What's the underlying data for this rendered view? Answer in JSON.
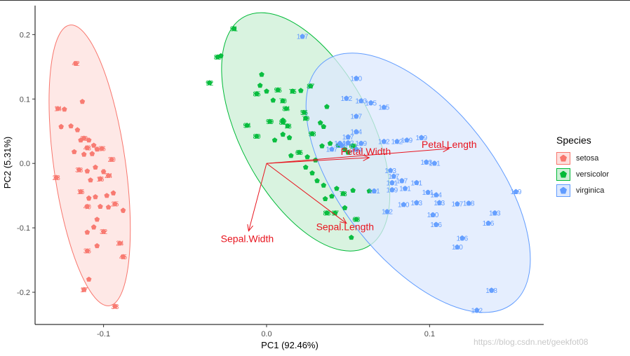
{
  "chart_data": {
    "type": "scatter",
    "title": "",
    "xlabel": "PC1 (92.46%)",
    "ylabel": "PC2 (5.31%)",
    "xlim": [
      -0.142,
      0.17
    ],
    "ylim": [
      -0.25,
      0.245
    ],
    "x_ticks": [
      -0.1,
      0.0,
      0.1
    ],
    "x_tick_labels": [
      "-0.1",
      "0.0",
      "0.1"
    ],
    "y_ticks": [
      -0.2,
      -0.1,
      0.0,
      0.1,
      0.2
    ],
    "y_tick_labels": [
      "-0.2",
      "-0.1",
      "0.0",
      "0.1",
      "0.2"
    ],
    "grid": false,
    "legend": {
      "title": "Species",
      "placement": "right"
    },
    "series": [
      {
        "name": "setosa",
        "color": "#F8766D",
        "fill": "#FDE0DE",
        "ellipse": {
          "cx": -0.1085,
          "cy": -0.003,
          "rx": 0.022,
          "ry": 0.22,
          "angle": -8
        },
        "points": [
          [
            -0.117,
            0.155,
            "42"
          ],
          [
            -0.113,
            0.096,
            ""
          ],
          [
            -0.128,
            0.085,
            "14"
          ],
          [
            -0.124,
            0.084,
            ""
          ],
          [
            -0.126,
            0.057,
            "9"
          ],
          [
            -0.12,
            0.058,
            ""
          ],
          [
            -0.116,
            0.052,
            ""
          ],
          [
            -0.112,
            0.039,
            "39"
          ],
          [
            -0.109,
            0.036,
            ""
          ],
          [
            -0.106,
            0.028,
            ""
          ],
          [
            -0.114,
            0.036,
            ""
          ],
          [
            -0.11,
            0.024,
            "43"
          ],
          [
            -0.104,
            0.022,
            ""
          ],
          [
            -0.101,
            0.023,
            "26"
          ],
          [
            -0.107,
            0.015,
            ""
          ],
          [
            -0.112,
            0.014,
            ""
          ],
          [
            -0.118,
            0.018,
            ""
          ],
          [
            -0.095,
            0.006,
            "20"
          ],
          [
            -0.115,
            -0.01,
            "38"
          ],
          [
            -0.11,
            -0.012,
            ""
          ],
          [
            -0.105,
            -0.006,
            ""
          ],
          [
            -0.1,
            -0.013,
            "7"
          ],
          [
            -0.129,
            -0.022,
            "23"
          ],
          [
            -0.097,
            -0.019,
            "24"
          ],
          [
            -0.108,
            -0.026,
            ""
          ],
          [
            -0.102,
            -0.024,
            "16"
          ],
          [
            -0.114,
            -0.044,
            "16"
          ],
          [
            -0.109,
            -0.054,
            "3"
          ],
          [
            -0.105,
            -0.052,
            ""
          ],
          [
            -0.098,
            -0.05,
            ""
          ],
          [
            -0.094,
            -0.046,
            "4"
          ],
          [
            -0.11,
            -0.067,
            "40"
          ],
          [
            -0.102,
            -0.067,
            ""
          ],
          [
            -0.097,
            -0.068,
            ""
          ],
          [
            -0.093,
            -0.063,
            "25"
          ],
          [
            -0.088,
            -0.073,
            "6"
          ],
          [
            -0.104,
            -0.087,
            ""
          ],
          [
            -0.106,
            -0.099,
            "2"
          ],
          [
            -0.1,
            -0.106,
            "32"
          ],
          [
            -0.11,
            -0.107,
            ""
          ],
          [
            -0.104,
            -0.128,
            ""
          ],
          [
            -0.09,
            -0.124,
            "24"
          ],
          [
            -0.11,
            -0.136,
            "36"
          ],
          [
            -0.088,
            -0.145,
            "45"
          ],
          [
            -0.109,
            -0.18,
            ""
          ],
          [
            -0.112,
            -0.196,
            "17"
          ],
          [
            -0.093,
            -0.222,
            "33"
          ]
        ]
      },
      {
        "name": "versicolor",
        "color": "#00BA38",
        "fill": "#CCEFD6",
        "ellipse": {
          "cx": 0.024,
          "cy": 0.049,
          "rx": 0.04,
          "ry": 0.2025,
          "angle": -28
        },
        "points": [
          [
            -0.02,
            0.209,
            "91"
          ],
          [
            -0.028,
            0.167,
            ""
          ],
          [
            -0.03,
            0.165,
            "85"
          ],
          [
            -0.035,
            0.125,
            "92"
          ],
          [
            -0.003,
            0.138,
            ""
          ],
          [
            -0.004,
            0.121,
            ""
          ],
          [
            0.0,
            0.112,
            ""
          ],
          [
            0.007,
            0.114,
            "96"
          ],
          [
            0.016,
            0.112,
            "75"
          ],
          [
            -0.006,
            0.108,
            "85"
          ],
          [
            0.01,
            0.097,
            "70"
          ],
          [
            0.004,
            0.098,
            ""
          ],
          [
            0.021,
            0.113,
            ""
          ],
          [
            0.027,
            0.12,
            "87"
          ],
          [
            0.037,
            0.088,
            ""
          ],
          [
            0.023,
            0.079,
            "56"
          ],
          [
            0.012,
            0.085,
            "84"
          ],
          [
            0.01,
            0.067,
            ""
          ],
          [
            0.002,
            0.065,
            "99"
          ],
          [
            0.01,
            0.064,
            "82"
          ],
          [
            0.013,
            0.058,
            "78"
          ],
          [
            0.024,
            0.07,
            "79"
          ],
          [
            0.033,
            0.063,
            ""
          ],
          [
            0.028,
            0.046,
            "98"
          ],
          [
            0.035,
            0.057,
            ""
          ],
          [
            -0.012,
            0.059,
            "94"
          ],
          [
            -0.006,
            0.042,
            "80"
          ],
          [
            0.005,
            0.036,
            ""
          ],
          [
            0.01,
            0.045,
            ""
          ],
          [
            0.014,
            0.04,
            ""
          ],
          [
            0.034,
            0.027,
            ""
          ],
          [
            0.039,
            0.031,
            ""
          ],
          [
            0.044,
            0.028,
            ""
          ],
          [
            0.048,
            0.022,
            ""
          ],
          [
            0.053,
            0.027,
            "69"
          ],
          [
            0.05,
            0.017,
            ""
          ],
          [
            0.015,
            0.012,
            ""
          ],
          [
            0.02,
            0.017,
            "66"
          ],
          [
            0.025,
            0.01,
            ""
          ],
          [
            0.03,
            0.005,
            ""
          ],
          [
            0.024,
            -0.006,
            ""
          ],
          [
            0.028,
            -0.015,
            ""
          ],
          [
            0.031,
            -0.027,
            ""
          ],
          [
            0.035,
            -0.034,
            ""
          ],
          [
            0.043,
            -0.039,
            ""
          ],
          [
            0.047,
            -0.047,
            "73"
          ],
          [
            0.04,
            -0.051,
            ""
          ],
          [
            0.036,
            -0.055,
            ""
          ],
          [
            0.048,
            -0.069,
            ""
          ],
          [
            0.055,
            -0.087,
            "63"
          ],
          [
            0.042,
            -0.077,
            "97"
          ],
          [
            0.037,
            -0.077,
            "83"
          ],
          [
            0.052,
            -0.115,
            ""
          ],
          [
            0.053,
            -0.042,
            ""
          ],
          [
            0.063,
            -0.043,
            ""
          ]
        ]
      },
      {
        "name": "virginica",
        "color": "#619CFF",
        "fill": "#DCE8FE",
        "ellipse": {
          "cx": 0.093,
          "cy": -0.03,
          "rx": 0.047,
          "ry": 0.238,
          "angle": -38
        },
        "points": [
          [
            0.022,
            0.197,
            "107"
          ],
          [
            0.055,
            0.132,
            "120"
          ],
          [
            0.049,
            0.101,
            "102"
          ],
          [
            0.058,
            0.097,
            "143"
          ],
          [
            0.064,
            0.094,
            "135"
          ],
          [
            0.072,
            0.087,
            "115"
          ],
          [
            0.055,
            0.073,
            "107"
          ],
          [
            0.055,
            0.049,
            "134"
          ],
          [
            0.05,
            0.041,
            "127"
          ],
          [
            0.058,
            0.031,
            "139"
          ],
          [
            0.05,
            0.032,
            "122"
          ],
          [
            0.046,
            0.028,
            "128"
          ],
          [
            0.04,
            0.022,
            "147"
          ],
          [
            0.045,
            0.031,
            "124"
          ],
          [
            0.055,
            0.022,
            "124"
          ],
          [
            0.072,
            0.034,
            "102"
          ],
          [
            0.08,
            0.034,
            "142"
          ],
          [
            0.086,
            0.036,
            "149"
          ],
          [
            0.095,
            0.04,
            "139"
          ],
          [
            0.098,
            0.002,
            "133"
          ],
          [
            0.103,
            0.0,
            "101"
          ],
          [
            0.076,
            -0.011,
            "143"
          ],
          [
            0.078,
            -0.02,
            "117"
          ],
          [
            0.077,
            -0.03,
            "131"
          ],
          [
            0.083,
            -0.027,
            "137"
          ],
          [
            0.092,
            -0.03,
            "141"
          ],
          [
            0.085,
            -0.039,
            "131"
          ],
          [
            0.077,
            -0.041,
            "139"
          ],
          [
            0.066,
            -0.043,
            "101"
          ],
          [
            0.099,
            -0.045,
            "131"
          ],
          [
            0.104,
            -0.049,
            "144"
          ],
          [
            0.106,
            -0.061,
            "113"
          ],
          [
            0.117,
            -0.063,
            "137"
          ],
          [
            0.124,
            -0.062,
            "138"
          ],
          [
            0.092,
            -0.061,
            "133"
          ],
          [
            0.084,
            -0.064,
            "140"
          ],
          [
            0.074,
            -0.075,
            "112"
          ],
          [
            0.102,
            -0.08,
            "100"
          ],
          [
            0.104,
            -0.095,
            "106"
          ],
          [
            0.153,
            -0.044,
            "119"
          ],
          [
            0.14,
            -0.077,
            "123"
          ],
          [
            0.136,
            -0.093,
            "126"
          ],
          [
            0.12,
            -0.116,
            "136"
          ],
          [
            0.117,
            -0.13,
            "110"
          ],
          [
            0.138,
            -0.197,
            "108"
          ],
          [
            0.129,
            -0.228,
            "132"
          ]
        ]
      }
    ],
    "arrows": [
      {
        "label": "Petal.Length",
        "x": 0.112,
        "y": 0.023
      },
      {
        "label": "Petal.Width",
        "x": 0.063,
        "y": 0.009
      },
      {
        "label": "Sepal.Length",
        "x": 0.049,
        "y": -0.093
      },
      {
        "label": "Sepal.Width",
        "x": -0.011,
        "y": -0.105
      }
    ]
  },
  "watermark": "https://blog.csdn.net/geekfot08"
}
